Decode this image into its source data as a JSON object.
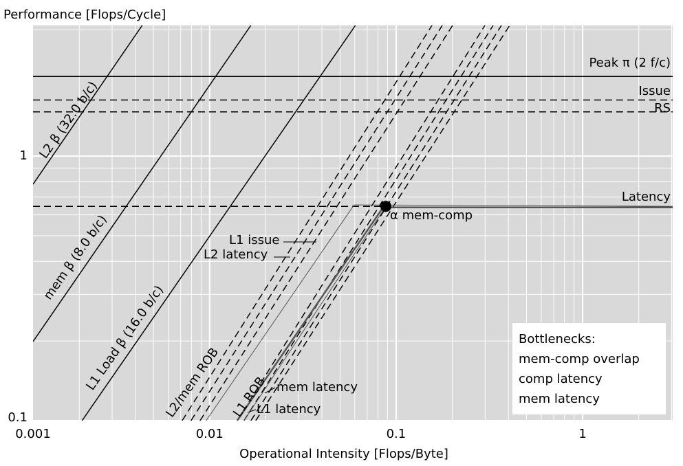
{
  "chart_data": {
    "type": "line",
    "title": "Performance [Flops/Cycle]",
    "x_label": "Operational Intensity [Flops/Byte]",
    "log_x": true,
    "log_y": true,
    "grid": true,
    "background": "#d9d9d9",
    "xlim": [
      0.00113,
      3.04
    ],
    "ylim": [
      0.1,
      3.12
    ],
    "xticks": [
      0.001,
      0.01,
      0.1,
      1
    ],
    "yticks": [
      0.1,
      1
    ],
    "series": [
      {
        "style": "solid",
        "color": "#000000",
        "x": [
          0.00113,
          0.00435
        ],
        "values": [
          0.783,
          3.12
        ]
      },
      {
        "style": "solid",
        "color": "#000000",
        "x": [
          0.00113,
          0.01663
        ],
        "values": [
          0.199,
          3.12
        ]
      },
      {
        "style": "solid",
        "color": "#000000",
        "x": [
          0.00207,
          0.0605
        ],
        "values": [
          0.1,
          3.12
        ]
      },
      {
        "style": "solid",
        "color": "#000000",
        "x": [
          0.00113,
          3.04
        ],
        "values": [
          2,
          2
        ]
      },
      {
        "style": "dashed",
        "color": "#000000",
        "x": [
          0.00113,
          3.04
        ],
        "values": [
          1.63,
          1.63
        ]
      },
      {
        "style": "dashed",
        "color": "#000000",
        "x": [
          0.00113,
          3.04
        ],
        "values": [
          1.47,
          1.47
        ]
      },
      {
        "style": "dashed",
        "color": "#000000",
        "x": [
          0.00113,
          0.0881
        ],
        "values": [
          0.646,
          0.646
        ]
      },
      {
        "style": "dashed",
        "color": "#000000",
        "x": [
          0.00712,
          0.1556
        ],
        "values": [
          0.1,
          3.12
        ]
      },
      {
        "style": "dashed",
        "color": "#000000",
        "x": [
          0.00795,
          0.1767
        ],
        "values": [
          0.1,
          3.12
        ]
      },
      {
        "style": "dashed",
        "color": "#000000",
        "x": [
          0.00888,
          0.2008
        ],
        "values": [
          0.1,
          3.12
        ]
      },
      {
        "style": "dashed",
        "color": "#000000",
        "x": [
          0.01405,
          0.2992
        ],
        "values": [
          0.1,
          3.12
        ]
      },
      {
        "style": "dashed",
        "color": "#000000",
        "x": [
          0.01529,
          0.3314
        ],
        "values": [
          0.1,
          3.12
        ]
      },
      {
        "style": "dashed",
        "color": "#000000",
        "x": [
          0.01665,
          0.367
        ],
        "values": [
          0.1,
          3.12
        ]
      },
      {
        "style": "dashed",
        "color": "#000000",
        "x": [
          0.01767,
          0.4064
        ],
        "values": [
          0.1,
          3.12
        ]
      },
      {
        "style": "thin",
        "color": "#555555",
        "x": [
          0.00958,
          0.0595,
          3.04
        ],
        "values": [
          0.1,
          0.654,
          0.646
        ]
      },
      {
        "style": "thin",
        "color": "#555555",
        "x": [
          0.01529,
          0.0881
        ],
        "values": [
          0.1,
          0.646
        ]
      },
      {
        "style": "thick",
        "color": "#555555",
        "x": [
          0.01405,
          0.0851,
          3.04
        ],
        "values": [
          0.1,
          0.64,
          0.64
        ]
      }
    ],
    "point": {
      "x": 0.0881,
      "y": 0.646,
      "color": "#000000"
    },
    "annotations": [
      "Peak π (2 f/c)",
      "Issue",
      "RS",
      "Latency",
      "L2 β (32.0 b/c)",
      "mem β (8.0 b/c)",
      "L1 Load β (16.0 b/c)",
      "L2/mem ROB",
      "L1 ROB",
      "L1 issue",
      "L2 latency",
      "mem latency",
      "L1 latency",
      "α mem-comp"
    ],
    "legend": {
      "title": "Bottlenecks:",
      "items": [
        "mem-comp overlap",
        "comp latency",
        "mem latency"
      ]
    }
  }
}
